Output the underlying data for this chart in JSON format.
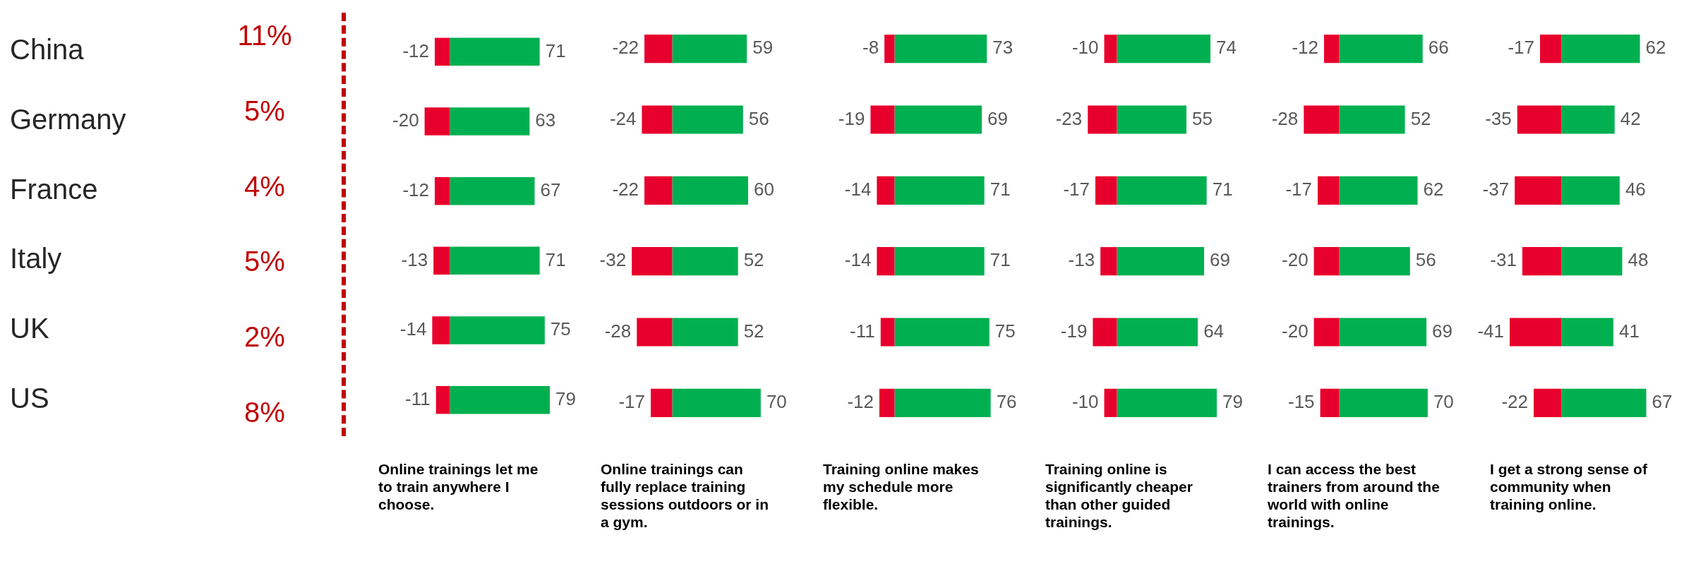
{
  "chart_data": [
    {
      "type": "other",
      "value_labels": [
        "11%",
        "5%",
        "4%",
        "5%",
        "2%",
        "8%"
      ]
    },
    {
      "type": "bar",
      "orientation": "horizontal",
      "stacked": true,
      "tick_labels": "y",
      "data_labels": true,
      "title": "Online trainings let me to train anywhere I choose.",
      "categories": [
        "China",
        "Germany",
        "France",
        "Italy",
        "UK",
        "US"
      ],
      "series": [
        {
          "color": "#e8002d",
          "values": [
            -12,
            -20,
            -12,
            -13,
            -14,
            -11
          ]
        },
        {
          "color": "#00b050",
          "values": [
            71,
            63,
            67,
            71,
            75,
            79
          ]
        }
      ]
    },
    {
      "type": "bar",
      "orientation": "horizontal",
      "stacked": true,
      "tick_labels": false,
      "data_labels": true,
      "title": "Online trainings can fully replace training sessions outdoors or in a gym.",
      "categories": [
        null,
        null,
        null,
        null,
        null,
        null
      ],
      "series": [
        {
          "color": "#e8002d",
          "values": [
            -22,
            -24,
            -22,
            -32,
            -28,
            -17
          ]
        },
        {
          "color": "#00b050",
          "values": [
            59,
            56,
            60,
            52,
            52,
            70
          ]
        }
      ]
    },
    {
      "type": "bar",
      "orientation": "horizontal",
      "stacked": true,
      "tick_labels": false,
      "data_labels": true,
      "title": "Training online makes my schedule more flexible.",
      "categories": [
        null,
        null,
        null,
        null,
        null,
        null
      ],
      "series": [
        {
          "color": "#e8002d",
          "values": [
            -8,
            -19,
            -14,
            -14,
            -11,
            -12
          ]
        },
        {
          "color": "#00b050",
          "values": [
            73,
            69,
            71,
            71,
            75,
            76
          ]
        }
      ]
    },
    {
      "type": "bar",
      "orientation": "horizontal",
      "stacked": true,
      "tick_labels": false,
      "data_labels": true,
      "title": "Training online is significantly cheaper than other guided trainings.",
      "categories": [
        null,
        null,
        null,
        null,
        null,
        null
      ],
      "series": [
        {
          "color": "#e8002d",
          "values": [
            -10,
            -23,
            -17,
            -13,
            -19,
            -10
          ]
        },
        {
          "color": "#00b050",
          "values": [
            74,
            55,
            71,
            69,
            64,
            79
          ]
        }
      ]
    },
    {
      "type": "bar",
      "orientation": "horizontal",
      "stacked": true,
      "tick_labels": false,
      "data_labels": true,
      "title": "I can access the best trainers from around the world with online trainings.",
      "categories": [
        null,
        null,
        null,
        null,
        null,
        null
      ],
      "series": [
        {
          "color": "#e8002d",
          "values": [
            -12,
            -28,
            -17,
            -20,
            -20,
            -15
          ]
        },
        {
          "color": "#00b050",
          "values": [
            66,
            52,
            62,
            56,
            69,
            70
          ]
        }
      ]
    },
    {
      "type": "bar",
      "orientation": "horizontal",
      "stacked": true,
      "tick_labels": false,
      "data_labels": true,
      "title": "I get a strong sense of community when training online.",
      "categories": [
        null,
        null,
        null,
        null,
        null,
        null
      ],
      "series": [
        {
          "color": "#e8002d",
          "values": [
            -17,
            -35,
            -37,
            -31,
            -41,
            -22
          ]
        },
        {
          "color": "#00b050",
          "values": [
            62,
            42,
            46,
            48,
            41,
            67
          ]
        }
      ]
    }
  ]
}
